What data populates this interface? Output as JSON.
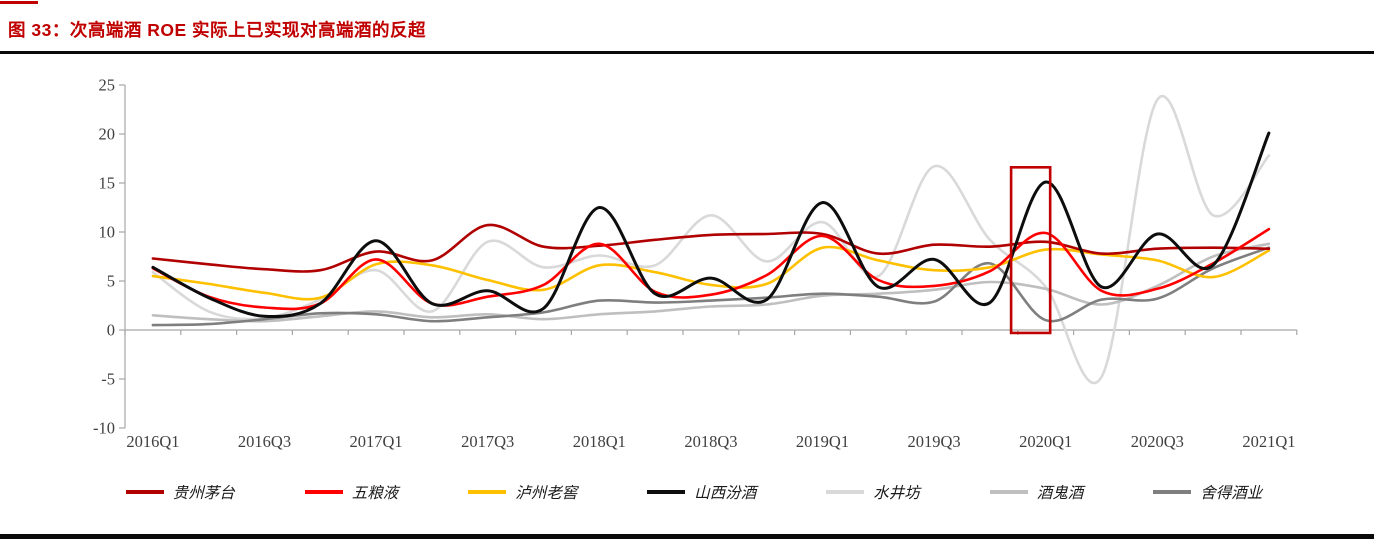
{
  "page": {
    "title": "图 33：次高端酒 ROE 实际上已实现对高端酒的反超",
    "accent_color": "#C00000"
  },
  "chart_data": {
    "type": "line",
    "smooth": true,
    "grid": false,
    "legend_position": "bottom",
    "ylabel": "",
    "xlabel": "",
    "ylim": [
      -10,
      25
    ],
    "y_ticks": [
      25,
      20,
      15,
      10,
      5,
      0,
      -5,
      -10
    ],
    "x_categories": [
      "2016Q1",
      "2016Q2",
      "2016Q3",
      "2016Q4",
      "2017Q1",
      "2017Q2",
      "2017Q3",
      "2017Q4",
      "2018Q1",
      "2018Q2",
      "2018Q3",
      "2018Q4",
      "2019Q1",
      "2019Q2",
      "2019Q3",
      "2019Q4",
      "2020Q1",
      "2020Q2",
      "2020Q3",
      "2020Q4",
      "2021Q1"
    ],
    "x_axis_tick_labels": [
      "2016Q1",
      "2016Q3",
      "2017Q1",
      "2017Q3",
      "2018Q1",
      "2018Q3",
      "2019Q1",
      "2019Q3",
      "2020Q1",
      "2020Q3",
      "2021Q1"
    ],
    "series": [
      {
        "name": "贵州茅台",
        "color": "#B00000",
        "values": [
          7.3,
          6.7,
          6.2,
          6.1,
          8.0,
          7.1,
          10.7,
          8.5,
          8.6,
          9.2,
          9.7,
          9.8,
          9.8,
          7.8,
          8.7,
          8.5,
          9.0,
          7.8,
          8.3,
          8.4,
          8.3
        ]
      },
      {
        "name": "五粮液",
        "color": "#FF0000",
        "values": [
          6.3,
          3.4,
          2.3,
          2.7,
          7.2,
          2.7,
          3.4,
          4.6,
          8.8,
          3.9,
          3.6,
          5.6,
          9.6,
          5.1,
          4.5,
          6.0,
          9.9,
          4.0,
          4.2,
          6.8,
          10.3
        ]
      },
      {
        "name": "泸州老窖",
        "color": "#FFC000",
        "values": [
          5.5,
          4.7,
          3.8,
          3.3,
          6.7,
          6.6,
          5.1,
          4.1,
          6.6,
          5.9,
          4.6,
          4.7,
          8.4,
          7.1,
          6.1,
          6.4,
          8.2,
          7.7,
          7.1,
          5.4,
          8.1
        ]
      },
      {
        "name": "山西汾酒",
        "color": "#0D0D0D",
        "values": [
          6.4,
          3.3,
          1.4,
          2.7,
          9.1,
          2.7,
          4.0,
          2.2,
          12.5,
          3.7,
          5.3,
          3.1,
          13.0,
          4.4,
          7.2,
          2.8,
          15.1,
          4.4,
          9.8,
          6.6,
          20.1
        ]
      },
      {
        "name": "水井坊",
        "color": "#D9D9D9",
        "values": [
          5.9,
          1.9,
          1.2,
          3.1,
          6.1,
          1.9,
          9.0,
          6.4,
          7.6,
          6.6,
          11.7,
          7.0,
          11.0,
          5.5,
          16.7,
          9.2,
          4.4,
          -4.8,
          23.5,
          11.7,
          17.8
        ]
      },
      {
        "name": "酒鬼酒",
        "color": "#BFBFBF",
        "values": [
          1.5,
          1.1,
          0.9,
          1.4,
          1.9,
          1.3,
          1.6,
          1.1,
          1.6,
          1.9,
          2.4,
          2.6,
          3.5,
          3.7,
          4.1,
          4.9,
          4.2,
          2.6,
          4.5,
          7.5,
          8.8
        ]
      },
      {
        "name": "舍得酒业",
        "color": "#7F7F7F",
        "values": [
          0.5,
          0.6,
          1.1,
          1.7,
          1.6,
          0.9,
          1.3,
          1.8,
          3.0,
          2.8,
          3.0,
          3.3,
          3.7,
          3.4,
          2.9,
          6.8,
          1.0,
          3.1,
          3.2,
          6.3,
          8.4
        ]
      }
    ],
    "highlight_box": {
      "x_start_cat": "2019Q4",
      "x_end_cat": "2020Q1",
      "y_min": -0.3,
      "y_max": 16.6,
      "color": "#C00000"
    }
  }
}
